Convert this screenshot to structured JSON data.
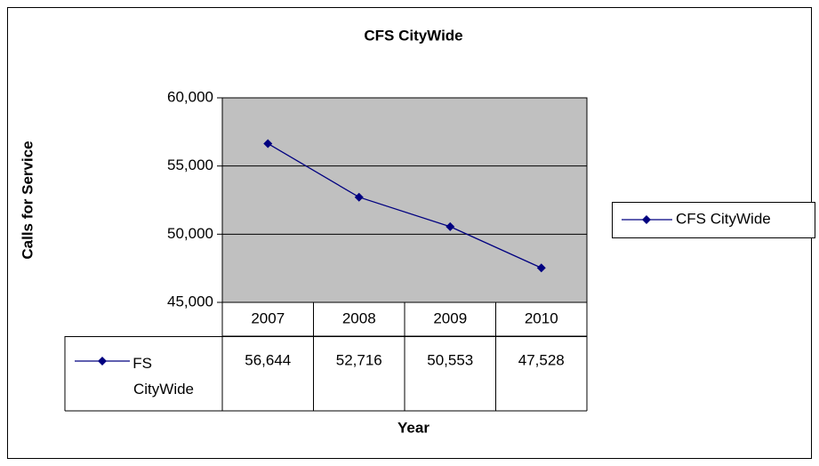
{
  "chart_data": {
    "type": "line",
    "title": "CFS CityWide",
    "y_label": "Calls for Service",
    "x_label": "Year",
    "categories": [
      "2007",
      "2008",
      "2009",
      "2010"
    ],
    "series": [
      {
        "name": "CFS CityWide",
        "color": "#000080",
        "values": [
          56644,
          52716,
          50553,
          47528
        ],
        "value_labels": [
          "56,644",
          "52,716",
          "50,553",
          "47,528"
        ]
      }
    ],
    "ylim": [
      45000,
      60000
    ],
    "yticks": [
      {
        "value": 45000,
        "label": "45,000"
      },
      {
        "value": 50000,
        "label": "50,000"
      },
      {
        "value": 55000,
        "label": "55,000"
      },
      {
        "value": 60000,
        "label": "60,000"
      }
    ],
    "grid": true,
    "legend": "right",
    "plot_background": "#c0c0c0"
  }
}
